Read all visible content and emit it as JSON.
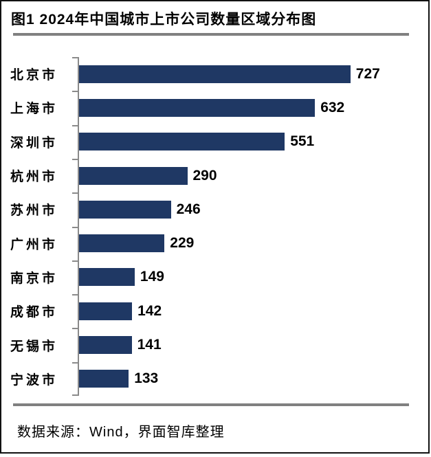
{
  "title": "图1 2024年中国城市上市公司数量区域分布图",
  "source": "数据来源：Wind，界面智库整理",
  "colors": {
    "bar_fill": "#1F3864",
    "divider_gray": "#808080",
    "axis_gray": "#8A8A8A",
    "text": "#000000",
    "border": "#111111",
    "background": "#FFFFFF"
  },
  "chart_data": {
    "type": "bar",
    "orientation": "horizontal",
    "title": "图1 2024年中国城市上市公司数量区域分布图",
    "categories": [
      "北京市",
      "上海市",
      "深圳市",
      "杭州市",
      "苏州市",
      "广州市",
      "南京市",
      "成都市",
      "无锡市",
      "宁波市"
    ],
    "values": [
      727,
      632,
      551,
      290,
      246,
      229,
      149,
      142,
      141,
      133
    ],
    "xlabel": "",
    "ylabel": "",
    "xlim": [
      0,
      940
    ],
    "grid": false,
    "legend": "none",
    "data_labels": true,
    "source_note": "数据来源：Wind，界面智库整理"
  }
}
